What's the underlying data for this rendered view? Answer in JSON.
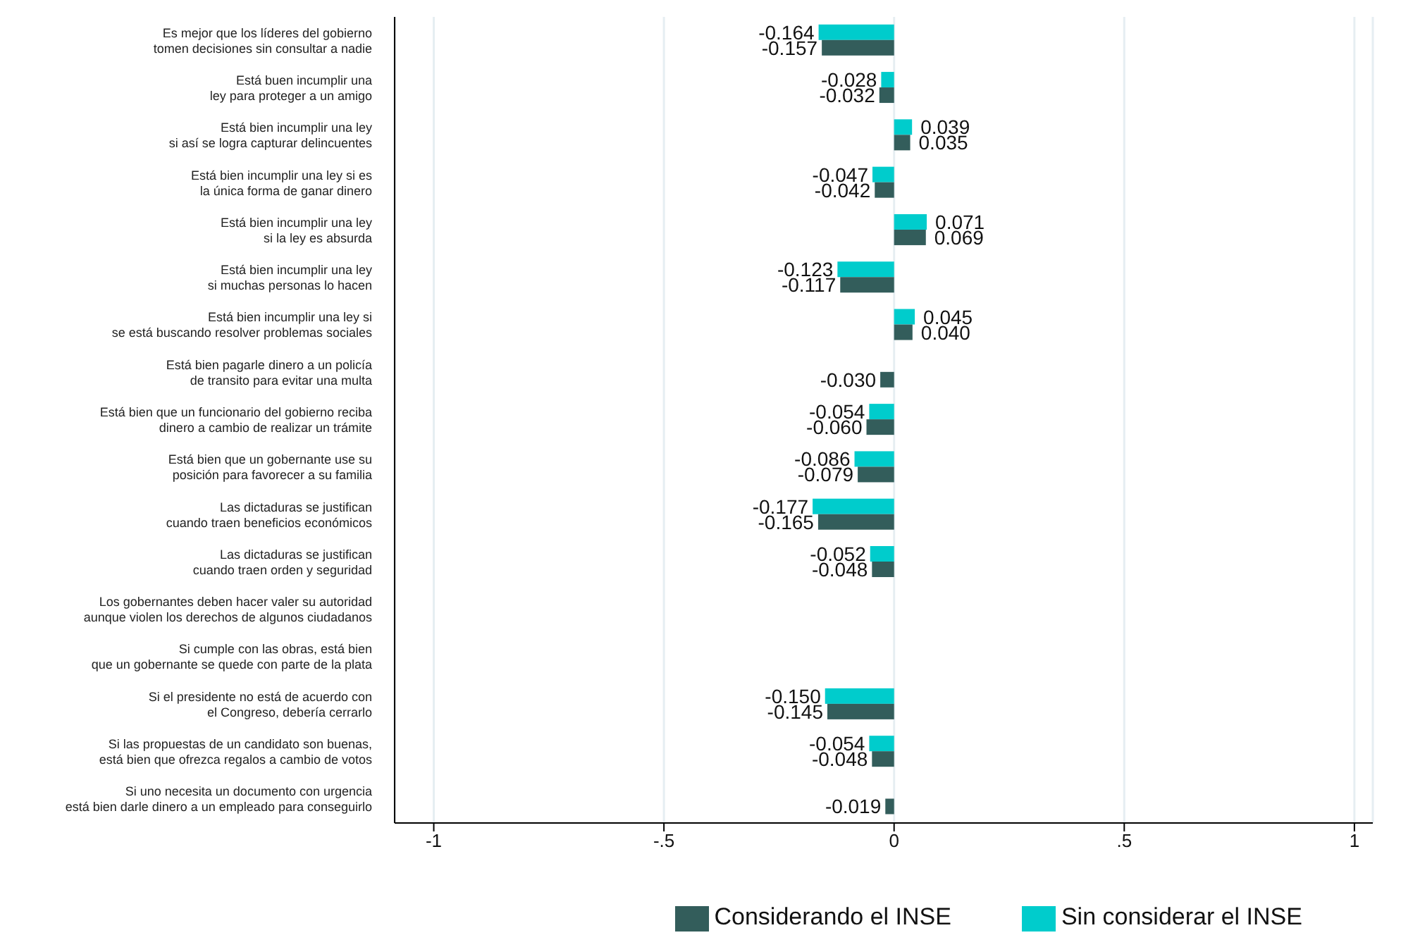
{
  "chart_data": {
    "type": "bar",
    "orientation": "horizontal",
    "categories": [
      "Es mejor que los líderes del gobierno\ntomen decisiones sin consultar a nadie",
      "Está buen incumplir una\nley para proteger a un amigo",
      "Está bien incumplir una ley\nsi así se logra capturar delincuentes",
      "Está bien incumplir una ley si es\nla única forma de ganar dinero",
      "Está bien incumplir una ley\nsi la ley es absurda",
      "Está bien incumplir una ley\nsi muchas personas lo hacen",
      "Está bien incumplir una ley si\nse está buscando resolver problemas sociales",
      "Está bien pagarle dinero a un policía\nde transito para evitar una multa",
      "Está bien que un funcionario del gobierno reciba\ndinero a cambio de realizar un trámite",
      "Está bien que un gobernante use su\nposición para favorecer a su familia",
      "Las dictaduras se justifican\ncuando traen beneficios económicos",
      "Las dictaduras se justifican\ncuando traen orden y seguridad",
      "Los gobernantes deben hacer valer su autoridad\naunque violen los derechos de algunos ciudadanos",
      "Si cumple con las obras, está bien\nque un gobernante se quede con parte de la plata",
      "Si el presidente no está de acuerdo con\nel Congreso, debería cerrarlo",
      "Si las propuestas de un candidato son buenas,\nestá bien que ofrezca regalos a cambio de votos",
      "Si uno necesita un documento con urgencia\nestá bien darle dinero a un empleado para conseguirlo"
    ],
    "series": [
      {
        "name": "Sin considerar el INSE",
        "color": "#00cccc",
        "values": [
          -0.164,
          -0.028,
          0.039,
          -0.047,
          0.071,
          -0.123,
          0.045,
          null,
          -0.054,
          -0.086,
          -0.177,
          -0.052,
          null,
          null,
          -0.15,
          -0.054,
          null
        ],
        "value_labels": [
          "-0.164",
          "-0.028",
          "0.039",
          "-0.047",
          "0.071",
          "-0.123",
          "0.045",
          null,
          "-0.054",
          "-0.086",
          "-0.177",
          "-0.052",
          null,
          null,
          "-0.150",
          "-0.054",
          null
        ]
      },
      {
        "name": "Considerando el INSE",
        "color": "#335d5b",
        "values": [
          -0.157,
          -0.032,
          0.035,
          -0.042,
          0.069,
          -0.117,
          0.04,
          -0.03,
          -0.06,
          -0.079,
          -0.165,
          -0.048,
          null,
          null,
          -0.145,
          -0.048,
          -0.019
        ],
        "value_labels": [
          "-0.157",
          "-0.032",
          "0.035",
          "-0.042",
          "0.069",
          "-0.117",
          "0.040",
          "-0.030",
          "-0.060",
          "-0.079",
          "-0.165",
          "-0.048",
          null,
          null,
          "-0.145",
          "-0.048",
          "-0.019"
        ]
      }
    ],
    "xlim": [
      -1.085,
      1.04
    ],
    "xticks": [
      {
        "value": -1,
        "label": "-1"
      },
      {
        "value": -0.5,
        "label": "-.5"
      },
      0,
      {
        "value": 0.5,
        "label": ".5"
      },
      1
    ],
    "grid": "x",
    "legend": "bottom"
  }
}
